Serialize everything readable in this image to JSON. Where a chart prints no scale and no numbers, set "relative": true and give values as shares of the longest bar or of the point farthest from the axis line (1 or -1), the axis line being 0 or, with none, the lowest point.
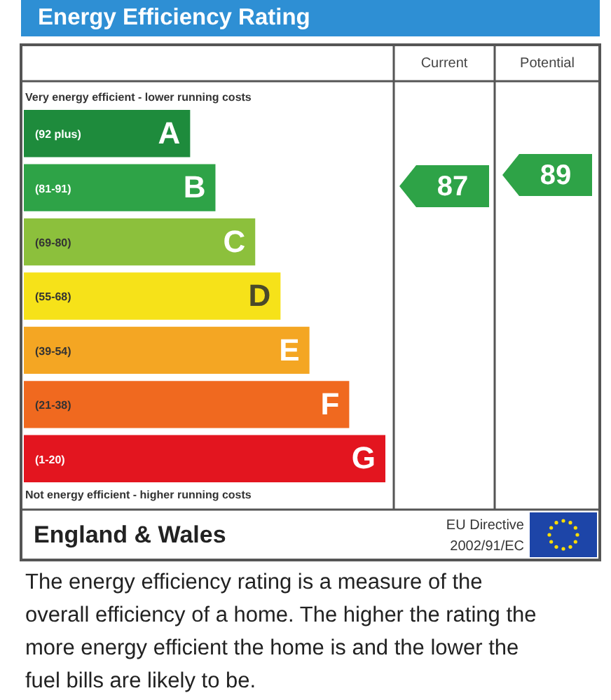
{
  "chart_data": {
    "type": "bar",
    "orientation": "horizontal",
    "relative": true,
    "title": "Energy Efficiency Rating",
    "categories": [
      "A",
      "B",
      "C",
      "D",
      "E",
      "F",
      "G"
    ],
    "values": [
      0.46,
      0.53,
      0.64,
      0.71,
      0.79,
      0.9,
      1
    ],
    "colors": [
      "#1e8b3c",
      "#2ea347",
      "#8cc03c",
      "#f6e219",
      "#f4a623",
      "#f0691f",
      "#e3151f"
    ],
    "annotations": [
      "Very energy efficient - lower running costs",
      "Not energy efficient - higher running costs",
      "Current",
      "Potential",
      "England & Wales",
      "EU Directive 2002/91/EC",
      "The energy efficiency rating is a measure of the overall efficiency of a home. The higher the rating the more energy efficient the home is and the lower the fuel bills are likely to be.",
      "(92 plus)",
      "(81-91)",
      "(69-80)",
      "(55-68)",
      "(39-54)",
      "(21-38)",
      "(1-20)",
      "87",
      "89"
    ]
  }
}
